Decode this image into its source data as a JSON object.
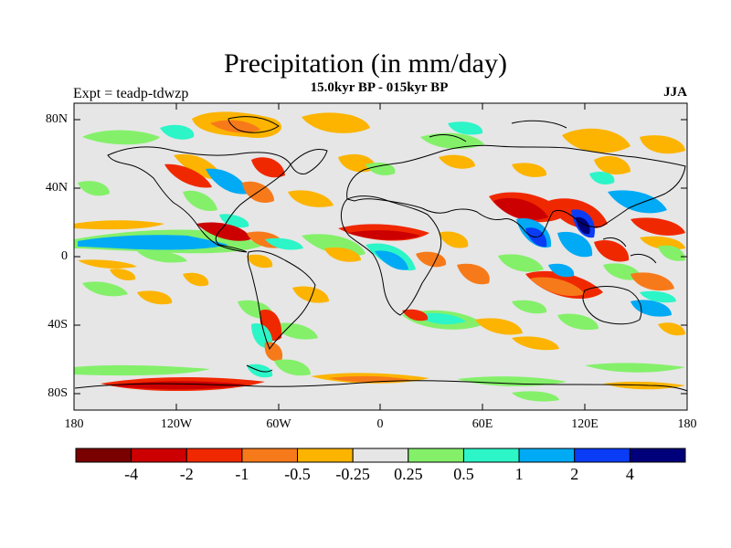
{
  "title": "Precipitation (in mm/day)",
  "subtitle": "15.0kyr BP - 015kyr BP",
  "left_label": "Expt = teadp-tdwzp",
  "right_label": "JJA",
  "lat_labels": [
    "80N",
    "40N",
    "0",
    "40S",
    "80S"
  ],
  "lon_labels": [
    "180",
    "120W",
    "60W",
    "0",
    "60E",
    "120E",
    "180"
  ],
  "colorbar": {
    "labels": [
      "-4",
      "-2",
      "-1",
      "-0.5",
      "-0.25",
      "0.25",
      "0.5",
      "1",
      "2",
      "4"
    ],
    "colors": [
      "#7a0000",
      "#cc0000",
      "#f02800",
      "#f77a1a",
      "#fcb400",
      "#e6e6e6",
      "#84f06a",
      "#2cf5c8",
      "#00aaf5",
      "#0a3cf5",
      "#00007a"
    ]
  },
  "colors": {
    "background": "#e6e6e6",
    "coastline": "#000000"
  }
}
